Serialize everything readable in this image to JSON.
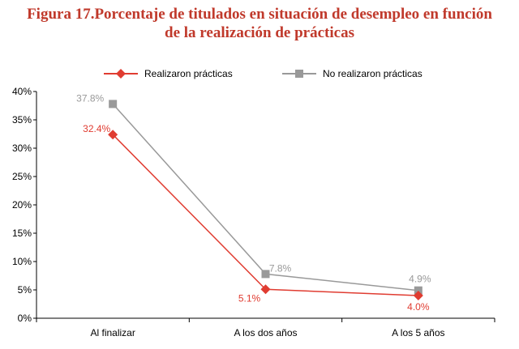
{
  "chart_data": {
    "type": "line",
    "title_line1": "Figura 17.Porcentaje de titulados en situación de desempleo en función",
    "title_line2": "de la realización de prácticas",
    "xlabel": "",
    "ylabel": "",
    "categories": [
      "Al finalizar",
      "A los dos años",
      "A los 5 años"
    ],
    "ylim": [
      0,
      40
    ],
    "yticks": [
      "0%",
      "5%",
      "10%",
      "15%",
      "20%",
      "25%",
      "30%",
      "35%",
      "40%"
    ],
    "grid": false,
    "legend_position": "top",
    "series": [
      {
        "name": "Realizaron prácticas",
        "values": [
          32.4,
          5.1,
          4.0
        ],
        "labels": [
          "32.4%",
          "5.1%",
          "4.0%"
        ],
        "color": "#e03c31",
        "marker": "diamond"
      },
      {
        "name": "No realizaron prácticas",
        "values": [
          37.8,
          7.8,
          4.9
        ],
        "labels": [
          "37.8%",
          "7.8%",
          "4.9%"
        ],
        "color": "#999999",
        "marker": "square"
      }
    ]
  }
}
